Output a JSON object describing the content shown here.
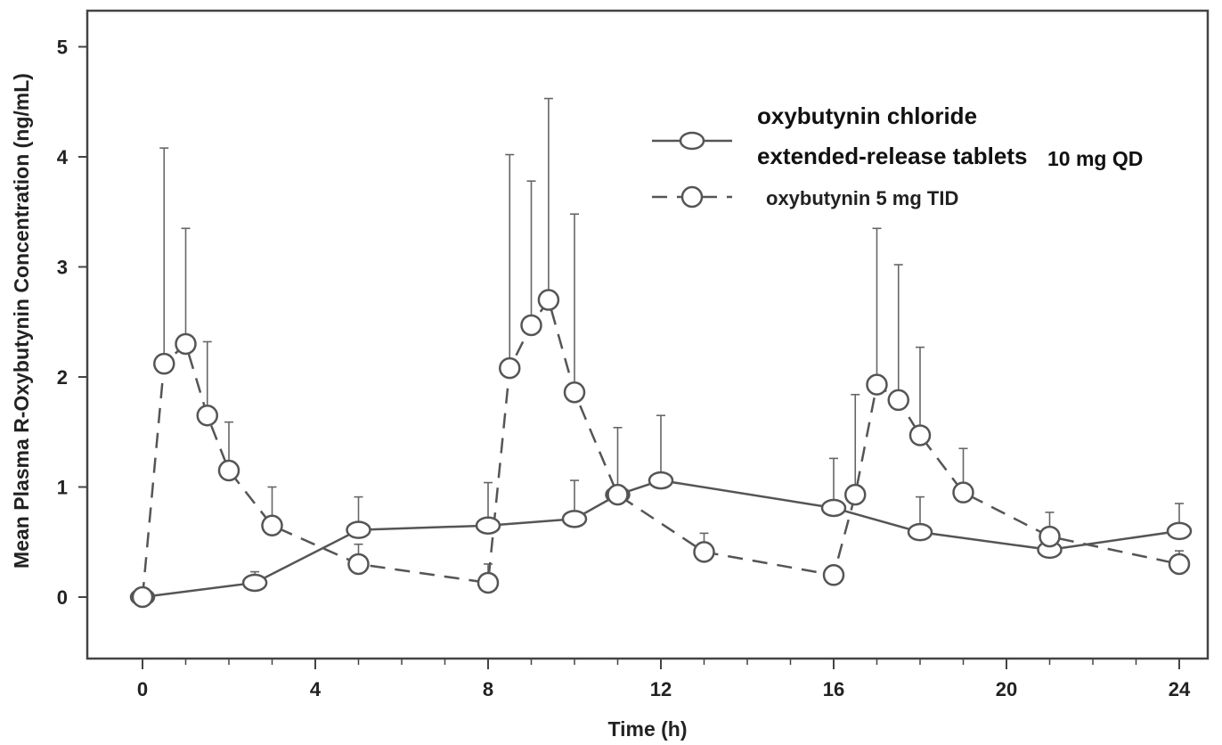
{
  "chart_data": {
    "type": "line",
    "title": "",
    "xlabel": "Time (h)",
    "ylabel": "Mean Plasma R-Oxybutynin Concentration (ng/mL)",
    "xlim": [
      0,
      24
    ],
    "ylim": [
      -0.5,
      5.2
    ],
    "x_ticks": [
      0,
      4,
      8,
      12,
      16,
      20,
      24
    ],
    "x_tick_labels": [
      "0",
      "4",
      "8",
      "12",
      "16",
      "20",
      "24"
    ],
    "x_minor_ticks": [
      1,
      2,
      3,
      5,
      6,
      7,
      9,
      10,
      11,
      13,
      14,
      15,
      17,
      18,
      19,
      21,
      22,
      23
    ],
    "y_ticks": [
      0,
      1,
      2,
      3,
      4,
      5
    ],
    "y_tick_labels": [
      "0",
      "1",
      "2",
      "3",
      "4",
      "5"
    ],
    "grid": false,
    "legend_position": "top-right",
    "series": [
      {
        "name_line1": "oxybutynin chloride",
        "name_line2": "extended-release tablets",
        "name_suffix": "10 mg QD",
        "style": "solid",
        "color": "#555555",
        "x": [
          0,
          2.6,
          5,
          8,
          10,
          11,
          12,
          16,
          18,
          21,
          24
        ],
        "y": [
          0,
          0.13,
          0.61,
          0.65,
          0.71,
          0.93,
          1.06,
          0.81,
          0.59,
          0.43,
          0.6
        ],
        "error_upper": [
          null,
          0.23,
          0.91,
          1.04,
          1.06,
          1.54,
          1.65,
          1.26,
          0.91,
          0.63,
          0.85
        ]
      },
      {
        "name": "oxybutynin 5 mg TID",
        "style": "dashed",
        "color": "#555555",
        "x": [
          0,
          0.5,
          1,
          1.5,
          2,
          3,
          5,
          8,
          8.5,
          9,
          9.4,
          10,
          11,
          13,
          16,
          16.5,
          17,
          17.5,
          18,
          19,
          21,
          24
        ],
        "y": [
          0,
          2.12,
          2.3,
          1.65,
          1.15,
          0.65,
          0.3,
          0.13,
          2.08,
          2.47,
          2.7,
          1.86,
          0.93,
          0.41,
          0.2,
          0.93,
          1.93,
          1.79,
          1.47,
          0.95,
          0.55,
          0.3
        ],
        "error_upper": [
          null,
          4.08,
          3.35,
          2.32,
          1.59,
          1.0,
          0.48,
          0.3,
          4.02,
          3.78,
          4.53,
          3.48,
          null,
          0.58,
          null,
          1.84,
          3.35,
          3.02,
          2.27,
          1.35,
          0.77,
          0.42
        ]
      }
    ]
  }
}
